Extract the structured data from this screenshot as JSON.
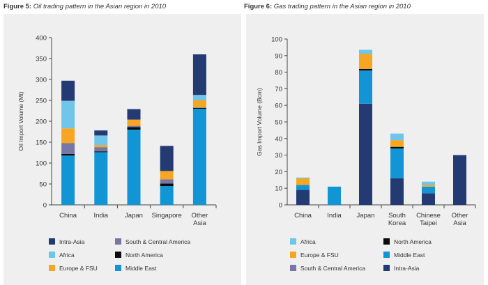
{
  "colors": {
    "intra_asia": "#233a73",
    "africa": "#6fc5ea",
    "europe_fsu": "#f6a623",
    "south_central_america": "#7777a6",
    "north_america": "#0b0b0b",
    "middle_east": "#1295d4"
  },
  "figures": {
    "left": {
      "num": "Figure 5:",
      "desc": "Oil trading pattern in the Asian region in 2010"
    },
    "right": {
      "num": "Figure 6:",
      "desc": "Gas trading pattern in the Asian region in 2010"
    }
  },
  "chart_data": [
    {
      "type": "bar",
      "stacked": true,
      "title": "Oil trading pattern in the Asian region in 2010",
      "ylabel": "Oil Import Volume (Mt)",
      "xlabel": "",
      "ylim": [
        0,
        400
      ],
      "yticks": [
        0,
        50,
        100,
        150,
        200,
        250,
        300,
        350,
        400
      ],
      "categories": [
        [
          "China"
        ],
        [
          "India"
        ],
        [
          "Japan"
        ],
        [
          "Singapore"
        ],
        [
          "Other",
          "Asia"
        ]
      ],
      "series": [
        {
          "key": "middle_east",
          "name": "Middle East",
          "values": [
            118,
            126,
            180,
            45,
            230
          ]
        },
        {
          "key": "north_america",
          "name": "North America",
          "values": [
            4,
            2,
            6,
            6,
            2
          ]
        },
        {
          "key": "south_central_america",
          "name": "South & Central America",
          "values": [
            26,
            10,
            3,
            10,
            1
          ]
        },
        {
          "key": "europe_fsu",
          "name": "Europe & FSU",
          "values": [
            35,
            5,
            15,
            20,
            17
          ]
        },
        {
          "key": "africa",
          "name": "Africa",
          "values": [
            66,
            23,
            0,
            0,
            13
          ]
        },
        {
          "key": "intra_asia",
          "name": "Intra-Asia",
          "values": [
            48,
            12,
            25,
            60,
            97
          ]
        }
      ],
      "legend_rows": [
        [
          "intra_asia",
          "south_central_america"
        ],
        [
          "africa",
          "north_america"
        ],
        [
          "europe_fsu",
          "middle_east"
        ]
      ]
    },
    {
      "type": "bar",
      "stacked": true,
      "title": "Gas trading pattern in the Asian region in 2010",
      "ylabel": "Gas Import Volume (Bcm)",
      "xlabel": "",
      "ylim": [
        0,
        100
      ],
      "yticks": [
        0,
        10,
        20,
        30,
        40,
        50,
        60,
        70,
        80,
        90,
        100
      ],
      "categories": [
        [
          "China"
        ],
        [
          "India"
        ],
        [
          "Japan"
        ],
        [
          "South",
          "Korea"
        ],
        [
          "Chinese",
          "Taipei"
        ],
        [
          "Other",
          "Asia"
        ]
      ],
      "series": [
        {
          "key": "intra_asia",
          "name": "Intra-Asia",
          "values": [
            9,
            0,
            61,
            16,
            7,
            30
          ]
        },
        {
          "key": "middle_east",
          "name": "Middle East",
          "values": [
            3,
            11,
            20,
            18,
            4,
            0
          ]
        },
        {
          "key": "north_america",
          "name": "North America",
          "values": [
            0,
            0,
            1,
            1,
            0,
            0
          ]
        },
        {
          "key": "south_central_america",
          "name": "South & Central America",
          "values": [
            0,
            0,
            0,
            0,
            0,
            0
          ]
        },
        {
          "key": "europe_fsu",
          "name": "Europe & FSU",
          "values": [
            4,
            0,
            9,
            4,
            1,
            0
          ]
        },
        {
          "key": "africa",
          "name": "Africa",
          "values": [
            0.5,
            0,
            2.5,
            4,
            2,
            0
          ]
        }
      ],
      "legend_rows": [
        [
          "africa",
          "north_america"
        ],
        [
          "europe_fsu",
          "middle_east"
        ],
        [
          "south_central_america",
          "intra_asia"
        ]
      ]
    }
  ]
}
